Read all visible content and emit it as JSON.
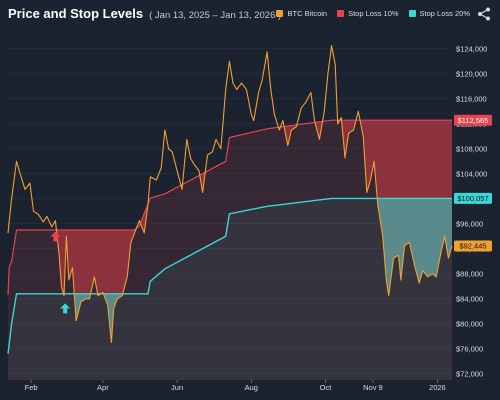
{
  "header": {
    "title": "Price and Stop Levels",
    "range": "( Jan 13, 2025 – Jan 13, 2026 )"
  },
  "legend": [
    {
      "label": "BTC Bitcoin",
      "color": "#f0a031"
    },
    {
      "label": "Stop Loss 10%",
      "color": "#e8434f"
    },
    {
      "label": "Stop Loss 20%",
      "color": "#3ad7d6"
    }
  ],
  "icons": {
    "share": "share-icon",
    "stop_triggered": "up-arrow-icon"
  },
  "chart_data": {
    "type": "line",
    "x_start": "2025-01-13",
    "x_end": "2026-01-13",
    "ylim": [
      71000,
      127000
    ],
    "y_ticks": [
      72000,
      76000,
      80000,
      84000,
      88000,
      92000,
      96000,
      100000,
      104000,
      108000,
      112000,
      116000,
      120000,
      124000
    ],
    "y_tick_labels": [
      "$72,000",
      "$76,000",
      "$80,000",
      "$84,000",
      "$88,000",
      "$92,000",
      "$96,000",
      "$100,000",
      "$104,000",
      "$108,000",
      "$112,000",
      "$116,000",
      "$120,000",
      "$124,000"
    ],
    "x_ticks": [
      {
        "date": "2025-02-01",
        "label": "Feb"
      },
      {
        "date": "2025-04-01",
        "label": "Apr"
      },
      {
        "date": "2025-06-01",
        "label": "Jun"
      },
      {
        "date": "2025-08-01",
        "label": "Aug"
      },
      {
        "date": "2025-10-01",
        "label": "Oct"
      },
      {
        "date": "2025-11-09",
        "label": "Nov 9"
      },
      {
        "date": "2026-01-01",
        "label": "2026"
      }
    ],
    "series": [
      {
        "name": "BTC Bitcoin",
        "color": "#f0a031",
        "points": [
          [
            "2025-01-13",
            94500
          ],
          [
            "2025-01-16",
            100000
          ],
          [
            "2025-01-20",
            106000
          ],
          [
            "2025-01-23",
            104000
          ],
          [
            "2025-01-27",
            101500
          ],
          [
            "2025-01-31",
            102500
          ],
          [
            "2025-02-03",
            98000
          ],
          [
            "2025-02-07",
            97500
          ],
          [
            "2025-02-11",
            96300
          ],
          [
            "2025-02-14",
            97200
          ],
          [
            "2025-02-18",
            95500
          ],
          [
            "2025-02-21",
            96500
          ],
          [
            "2025-02-24",
            91000
          ],
          [
            "2025-02-26",
            86000
          ],
          [
            "2025-02-28",
            84500
          ],
          [
            "2025-03-02",
            94000
          ],
          [
            "2025-03-04",
            87000
          ],
          [
            "2025-03-07",
            89000
          ],
          [
            "2025-03-10",
            80500
          ],
          [
            "2025-03-14",
            83500
          ],
          [
            "2025-03-18",
            84000
          ],
          [
            "2025-03-21",
            84000
          ],
          [
            "2025-03-25",
            87500
          ],
          [
            "2025-03-28",
            84500
          ],
          [
            "2025-04-01",
            85000
          ],
          [
            "2025-04-05",
            83000
          ],
          [
            "2025-04-08",
            77000
          ],
          [
            "2025-04-10",
            82500
          ],
          [
            "2025-04-13",
            84000
          ],
          [
            "2025-04-17",
            84500
          ],
          [
            "2025-04-21",
            87500
          ],
          [
            "2025-04-24",
            93000
          ],
          [
            "2025-04-27",
            94500
          ],
          [
            "2025-05-01",
            96500
          ],
          [
            "2025-05-05",
            94500
          ],
          [
            "2025-05-08",
            99000
          ],
          [
            "2025-05-10",
            103500
          ],
          [
            "2025-05-15",
            103000
          ],
          [
            "2025-05-19",
            105000
          ],
          [
            "2025-05-22",
            111000
          ],
          [
            "2025-05-25",
            108000
          ],
          [
            "2025-05-28",
            107500
          ],
          [
            "2025-06-01",
            104500
          ],
          [
            "2025-06-05",
            101500
          ],
          [
            "2025-06-09",
            109500
          ],
          [
            "2025-06-12",
            106500
          ],
          [
            "2025-06-15",
            105500
          ],
          [
            "2025-06-19",
            104500
          ],
          [
            "2025-06-22",
            101000
          ],
          [
            "2025-06-26",
            107000
          ],
          [
            "2025-06-30",
            107500
          ],
          [
            "2025-07-03",
            109500
          ],
          [
            "2025-07-07",
            108000
          ],
          [
            "2025-07-11",
            117500
          ],
          [
            "2025-07-14",
            122000
          ],
          [
            "2025-07-17",
            118500
          ],
          [
            "2025-07-20",
            117500
          ],
          [
            "2025-07-24",
            118500
          ],
          [
            "2025-07-28",
            117500
          ],
          [
            "2025-08-01",
            113500
          ],
          [
            "2025-08-03",
            112500
          ],
          [
            "2025-08-07",
            117000
          ],
          [
            "2025-08-10",
            119000
          ],
          [
            "2025-08-14",
            123500
          ],
          [
            "2025-08-17",
            117500
          ],
          [
            "2025-08-20",
            113500
          ],
          [
            "2025-08-24",
            111000
          ],
          [
            "2025-08-27",
            112500
          ],
          [
            "2025-08-31",
            108500
          ],
          [
            "2025-09-03",
            111000
          ],
          [
            "2025-09-07",
            111500
          ],
          [
            "2025-09-11",
            114500
          ],
          [
            "2025-09-15",
            115500
          ],
          [
            "2025-09-19",
            117000
          ],
          [
            "2025-09-22",
            112500
          ],
          [
            "2025-09-26",
            109500
          ],
          [
            "2025-09-30",
            114000
          ],
          [
            "2025-10-03",
            120000
          ],
          [
            "2025-10-06",
            124500
          ],
          [
            "2025-10-09",
            121500
          ],
          [
            "2025-10-11",
            112000
          ],
          [
            "2025-10-14",
            113000
          ],
          [
            "2025-10-17",
            106500
          ],
          [
            "2025-10-20",
            110500
          ],
          [
            "2025-10-24",
            111000
          ],
          [
            "2025-10-28",
            114000
          ],
          [
            "2025-11-01",
            110000
          ],
          [
            "2025-11-04",
            101000
          ],
          [
            "2025-11-07",
            103000
          ],
          [
            "2025-11-10",
            106000
          ],
          [
            "2025-11-13",
            99000
          ],
          [
            "2025-11-17",
            94000
          ],
          [
            "2025-11-20",
            87000
          ],
          [
            "2025-11-22",
            84500
          ],
          [
            "2025-11-26",
            90500
          ],
          [
            "2025-11-30",
            91000
          ],
          [
            "2025-12-02",
            87000
          ],
          [
            "2025-12-05",
            92500
          ],
          [
            "2025-12-09",
            93000
          ],
          [
            "2025-12-13",
            89500
          ],
          [
            "2025-12-17",
            86500
          ],
          [
            "2025-12-20",
            88500
          ],
          [
            "2025-12-24",
            87500
          ],
          [
            "2025-12-28",
            88000
          ],
          [
            "2025-12-31",
            87500
          ],
          [
            "2026-01-04",
            91500
          ],
          [
            "2026-01-07",
            94000
          ],
          [
            "2026-01-10",
            90500
          ],
          [
            "2026-01-13",
            92445
          ]
        ]
      },
      {
        "name": "Stop Loss 10%",
        "color": "#e8434f",
        "points": [
          [
            "2025-01-13",
            84600
          ],
          [
            "2025-01-14",
            89000
          ],
          [
            "2025-01-16",
            90000
          ],
          [
            "2025-01-20",
            95000
          ],
          [
            "2025-04-27",
            95000
          ],
          [
            "2025-05-01",
            95700
          ],
          [
            "2025-05-10",
            100100
          ],
          [
            "2025-05-22",
            100800
          ],
          [
            "2025-07-11",
            106000
          ],
          [
            "2025-07-14",
            109800
          ],
          [
            "2025-08-14",
            111200
          ],
          [
            "2025-10-06",
            112565
          ],
          [
            "2026-01-13",
            112565
          ]
        ]
      },
      {
        "name": "Stop Loss 20%",
        "color": "#3ad7d6",
        "points": [
          [
            "2025-01-13",
            75200
          ],
          [
            "2025-01-16",
            80000
          ],
          [
            "2025-01-20",
            84800
          ],
          [
            "2025-05-08",
            84800
          ],
          [
            "2025-05-10",
            86800
          ],
          [
            "2025-05-22",
            88800
          ],
          [
            "2025-07-11",
            94000
          ],
          [
            "2025-07-14",
            97600
          ],
          [
            "2025-08-14",
            98800
          ],
          [
            "2025-10-06",
            100057
          ],
          [
            "2026-01-13",
            100057
          ]
        ]
      }
    ],
    "last_values": [
      {
        "series": "Stop Loss 10%",
        "label": "$112,565",
        "value": 112565,
        "color": "#e8434f"
      },
      {
        "series": "Stop Loss 20%",
        "label": "$100,057",
        "value": 100057,
        "color": "#3ad7d6"
      },
      {
        "series": "BTC Bitcoin",
        "label": "$92,445",
        "value": 92445,
        "color": "#f0a031"
      }
    ],
    "markers": [
      {
        "date": "2025-02-21",
        "value": 93800,
        "color": "#e8434f",
        "series": "Stop Loss 10%"
      },
      {
        "date": "2025-03-01",
        "value": 82300,
        "color": "#3ad7d6",
        "series": "Stop Loss 20%"
      }
    ]
  }
}
